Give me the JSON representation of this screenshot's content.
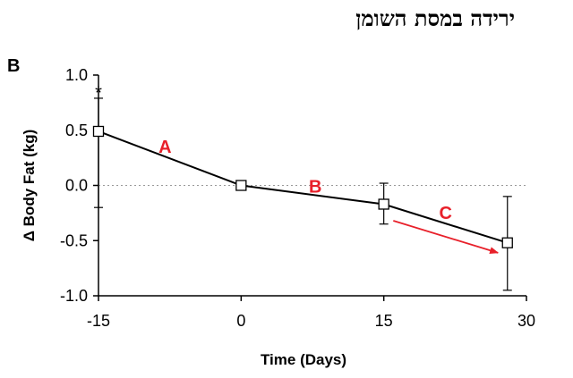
{
  "header": {
    "hebrew_title": "ירידה במסת השומן"
  },
  "chart_data": {
    "type": "line",
    "panel_label": "B",
    "title": "",
    "xlabel": "Time (Days)",
    "ylabel": "Δ Body Fat (kg)",
    "xlim": [
      -15,
      30
    ],
    "ylim": [
      -1.0,
      1.0
    ],
    "x_ticks": [
      -15,
      0,
      15,
      30
    ],
    "x_tick_labels": [
      "-15",
      "0",
      "15",
      "30"
    ],
    "y_ticks": [
      1.0,
      0.5,
      0.0,
      -0.5,
      -1.0
    ],
    "y_tick_labels": [
      "1.0",
      "0.5",
      "0.0",
      "-0.5",
      "-1.0"
    ],
    "grid": false,
    "reference_line_y": 0.0,
    "series": [
      {
        "x": [
          -15,
          0,
          15,
          28
        ],
        "y": [
          0.49,
          0.0,
          -0.17,
          -0.52
        ],
        "err_upper": [
          0.79,
          0.0,
          0.02,
          -0.1
        ],
        "err_lower": [
          -0.2,
          0.0,
          -0.35,
          -0.95
        ],
        "color": "#000000",
        "marker": "square"
      }
    ],
    "annotations": [
      {
        "text": "*",
        "x": -15,
        "y": 0.85
      },
      {
        "text": "A",
        "x": -8,
        "y": 0.36,
        "color": "#e8202a"
      },
      {
        "text": "B",
        "x": 7.8,
        "y": 0.0,
        "color": "#e8202a"
      },
      {
        "text": "C",
        "x": 21.5,
        "y": -0.24,
        "color": "#e8202a"
      }
    ],
    "arrow": {
      "from": [
        16,
        -0.32
      ],
      "to": [
        27,
        -0.61
      ],
      "color": "#e8202a"
    }
  }
}
